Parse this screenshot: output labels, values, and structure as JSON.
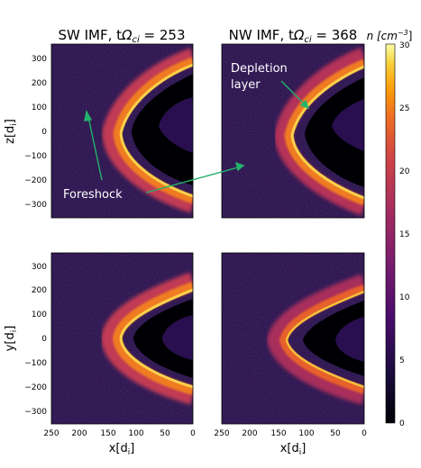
{
  "figure": {
    "title_left": {
      "main": "SW IMF, t",
      "omega": "Ω",
      "sub": "ci",
      "value": " = 253"
    },
    "title_right": {
      "main": "NW IMF, t",
      "omega": "Ω",
      "sub": "ci",
      "value": " = 368"
    },
    "colorbar_label": {
      "main": "n [cm",
      "sup": "−3",
      "close": "]"
    },
    "colorbar_ticks": [
      "0",
      "5",
      "10",
      "15",
      "20",
      "25",
      "30"
    ],
    "ylabel_top": {
      "main": "z[d",
      "sub": "i",
      "close": "]"
    },
    "ylabel_bottom": {
      "main": "y[d",
      "sub": "i",
      "close": "]"
    },
    "xlabel": {
      "main": "x[d",
      "sub": "i",
      "close": "]"
    },
    "y_ticks": [
      "300",
      "200",
      "100",
      "0",
      "−100",
      "−200",
      "−300"
    ],
    "x_ticks": [
      "250",
      "200",
      "150",
      "100",
      "50",
      "0"
    ],
    "annotations": {
      "foreshock": "Foreshock",
      "depletion_line1": "Depletion",
      "depletion_line2": "layer"
    },
    "colors": {
      "background": "#1c0a3e",
      "accent_arrow": "#22b36a",
      "inferno_dark": "#000004",
      "inferno_bright": "#fcffa4"
    }
  }
}
